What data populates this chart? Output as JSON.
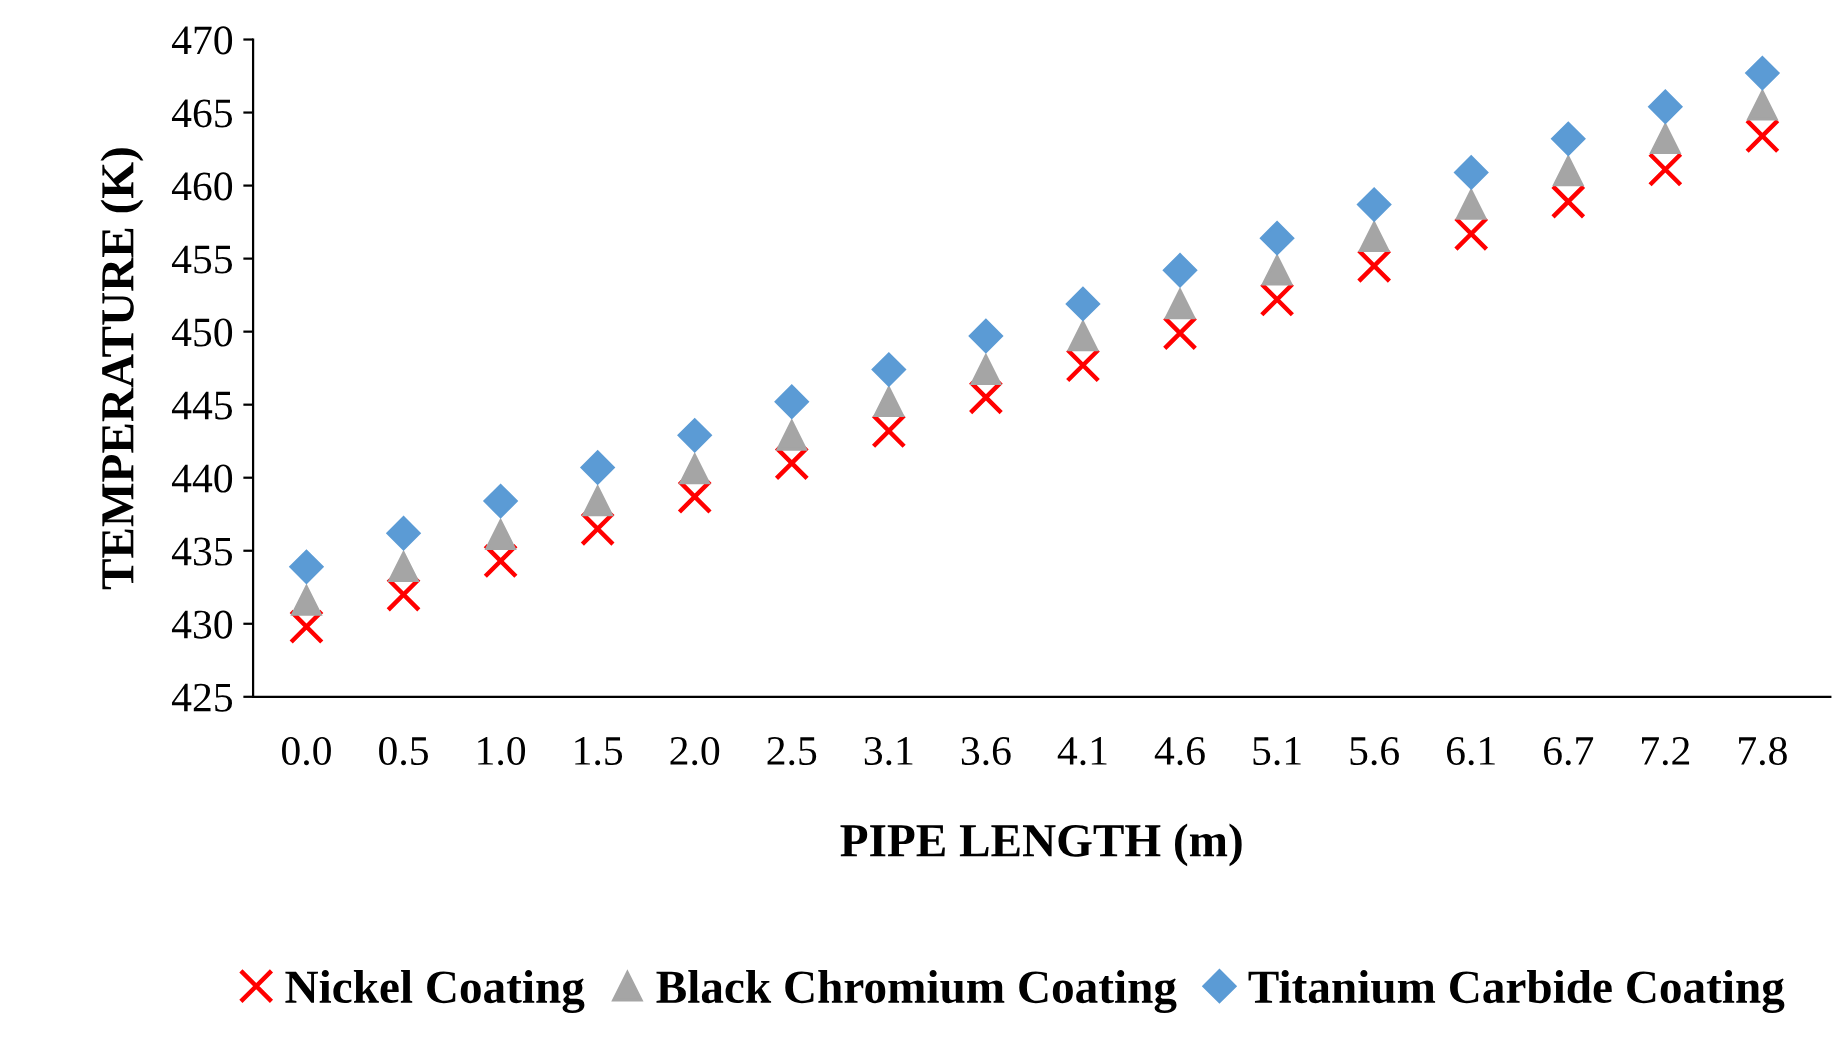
{
  "chart_data": {
    "type": "scatter",
    "xlabel": "PIPE LENGTH (m)",
    "ylabel": "TEMPERATURE (K)",
    "categories": [
      "0.0",
      "0.5",
      "1.0",
      "1.5",
      "2.0",
      "2.5",
      "3.1",
      "3.6",
      "4.1",
      "4.6",
      "5.1",
      "5.6",
      "6.1",
      "6.7",
      "7.2",
      "7.8"
    ],
    "series": [
      {
        "name": "Nickel Coating",
        "color": "#ff0000",
        "marker": "cross",
        "values": [
          429.8,
          432.0,
          434.3,
          436.5,
          438.7,
          441.0,
          443.2,
          445.5,
          447.7,
          449.9,
          452.2,
          454.5,
          456.7,
          458.9,
          461.1,
          463.4
        ]
      },
      {
        "name": "Black Chromium Coating",
        "color": "#a5a5a5",
        "marker": "triangle",
        "values": [
          431.6,
          433.9,
          436.1,
          438.4,
          440.6,
          442.9,
          445.2,
          447.4,
          449.7,
          451.9,
          454.2,
          456.5,
          458.7,
          461.0,
          463.2,
          465.5
        ]
      },
      {
        "name": "Titanium Carbide Coating",
        "color": "#5b9bd5",
        "marker": "diamond",
        "values": [
          433.9,
          436.2,
          438.4,
          440.7,
          442.9,
          445.2,
          447.4,
          449.7,
          451.9,
          454.2,
          456.4,
          458.7,
          460.9,
          463.2,
          465.4,
          467.7
        ]
      }
    ],
    "ylim": [
      425,
      470
    ],
    "yticks": [
      425,
      430,
      435,
      440,
      445,
      450,
      455,
      460,
      465,
      470
    ],
    "grid": false,
    "legend": "bottom"
  }
}
